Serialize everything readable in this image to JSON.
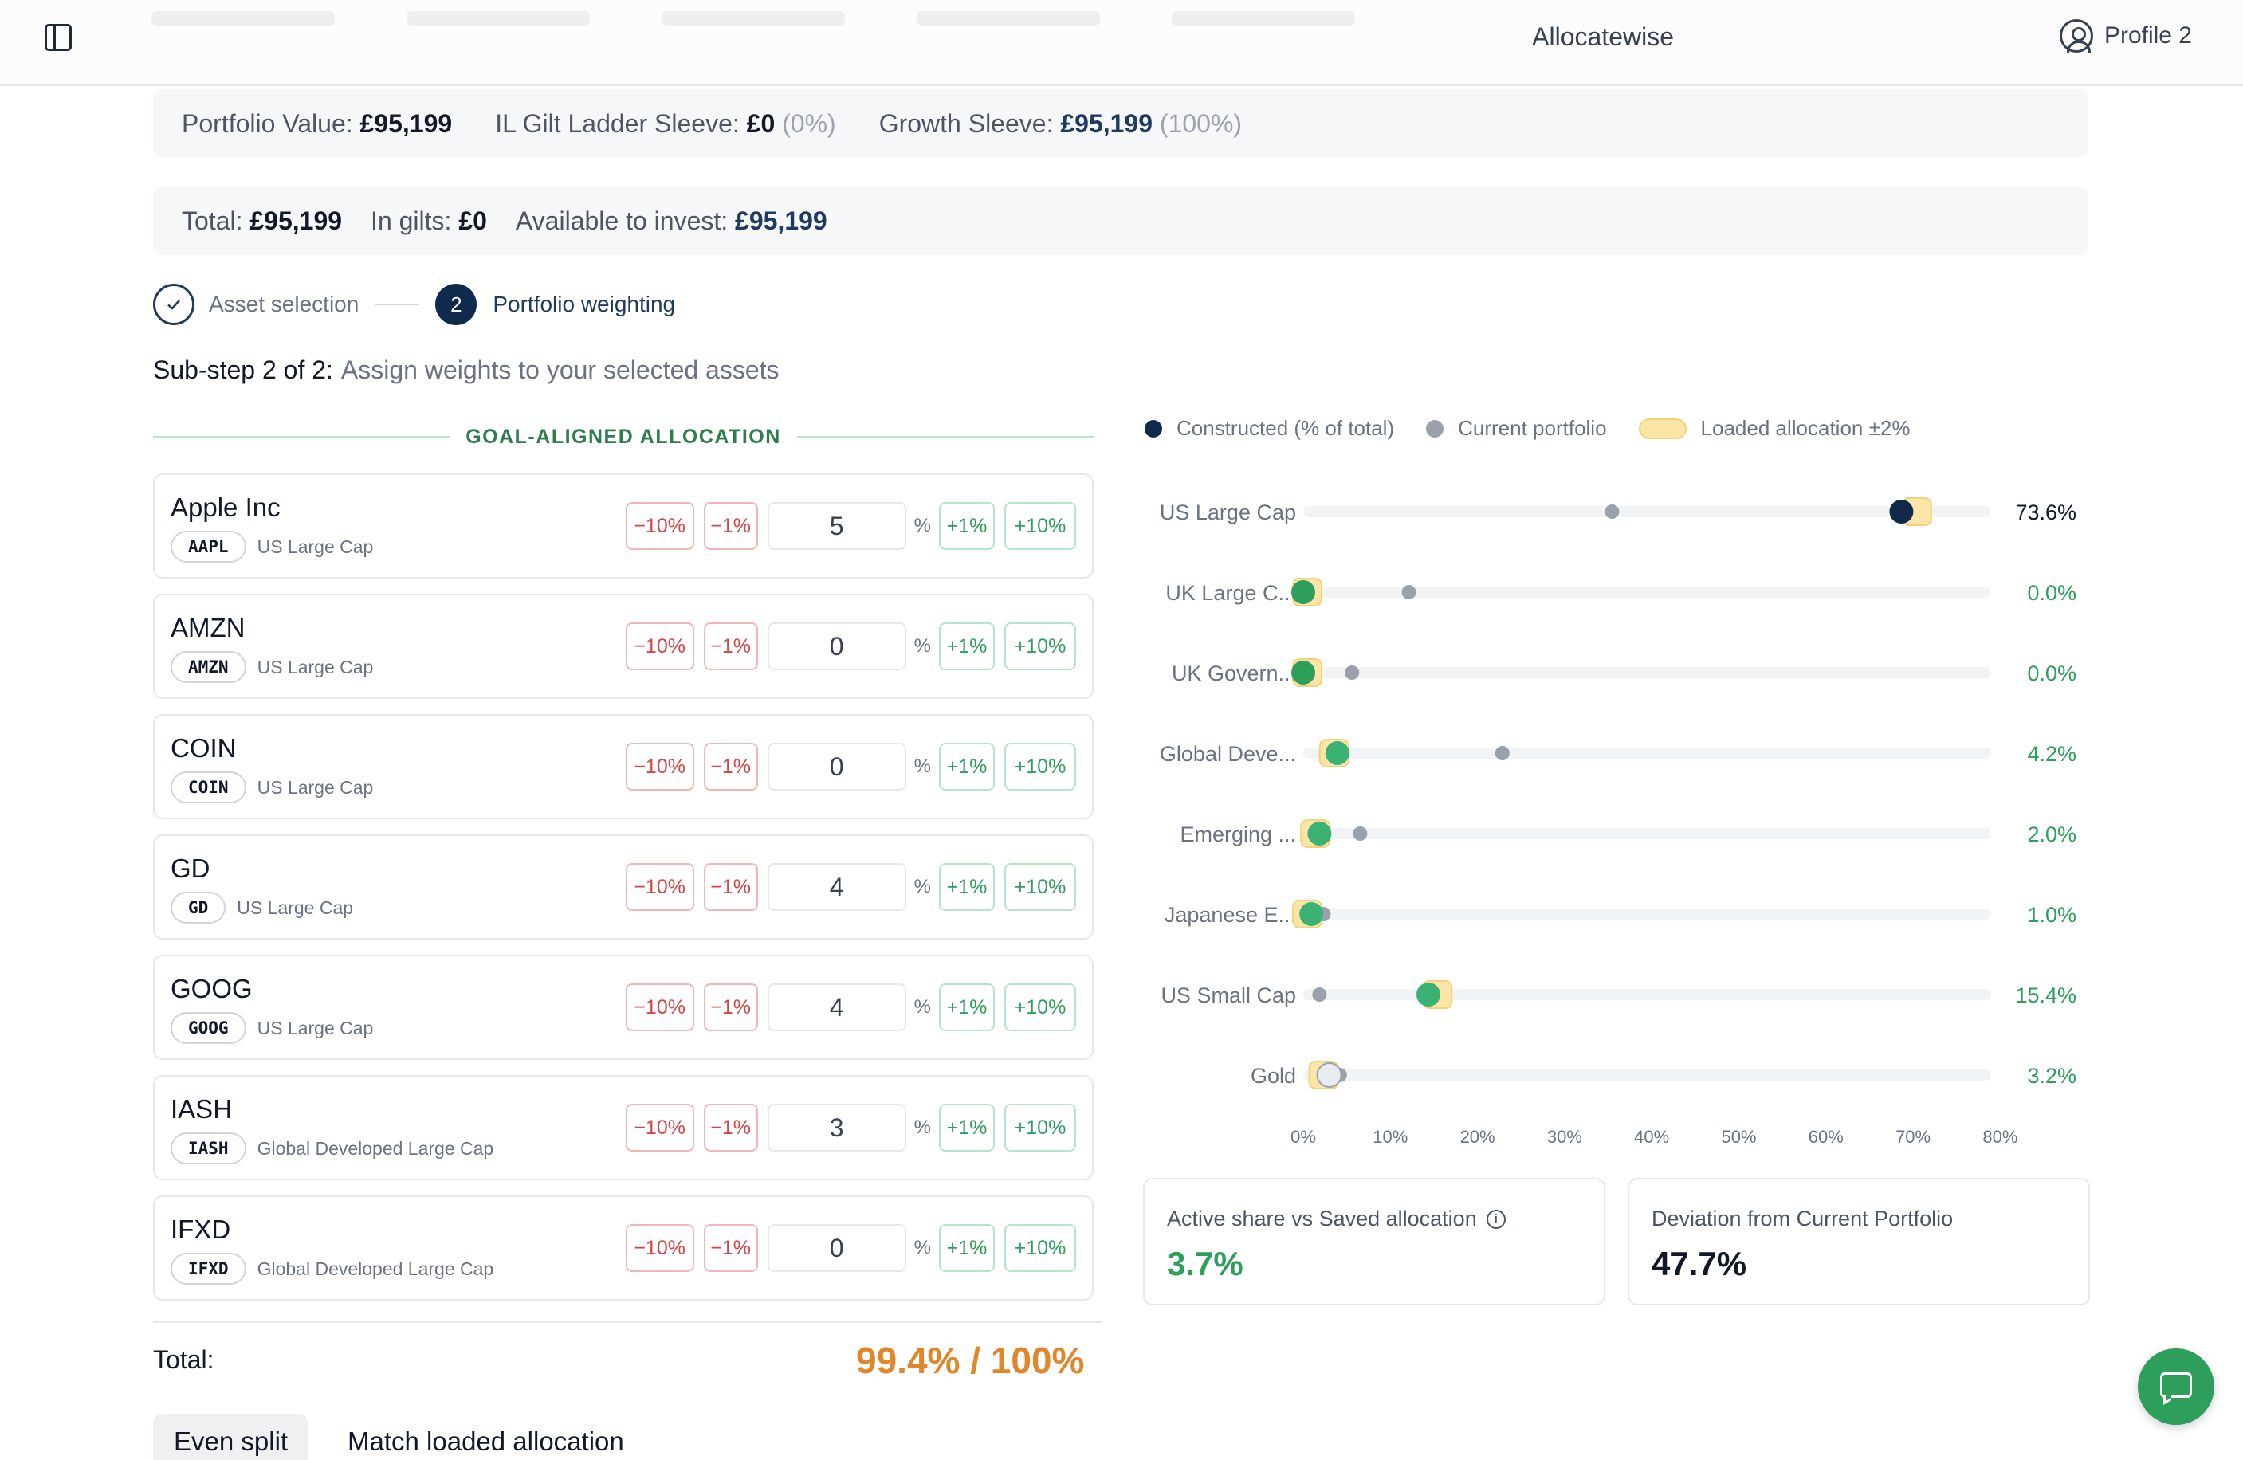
{
  "header": {
    "brand": "Allocatewise",
    "profile": "Profile 2"
  },
  "summary": {
    "portfolio_label": "Portfolio Value:",
    "portfolio_value": "£95,199",
    "gilt_label": "IL Gilt Ladder Sleeve:",
    "gilt_value": "£0",
    "gilt_pct": "(0%)",
    "growth_label": "Growth Sleeve:",
    "growth_value": "£95,199",
    "growth_pct": "(100%)"
  },
  "totals": {
    "total_label": "Total:",
    "total_value": "£95,199",
    "gilts_label": "In gilts:",
    "gilts_value": "£0",
    "available_label": "Available to invest:",
    "available_value": "£95,199"
  },
  "stepper": {
    "step1_label": "Asset selection",
    "step2_number": "2",
    "step2_label": "Portfolio weighting"
  },
  "substep": {
    "prefix": "Sub-step 2 of 2:",
    "text": "Assign weights to your selected assets"
  },
  "allocation_header": "GOAL-ALIGNED ALLOCATION",
  "buttons": {
    "minus10": "−10%",
    "minus1": "−1%",
    "plus1": "+1%",
    "plus10": "+10%",
    "pct": "%"
  },
  "assets": [
    {
      "name": "Apple Inc",
      "ticker": "AAPL",
      "class": "US Large Cap",
      "weight": "5"
    },
    {
      "name": "AMZN",
      "ticker": "AMZN",
      "class": "US Large Cap",
      "weight": "0"
    },
    {
      "name": "COIN",
      "ticker": "COIN",
      "class": "US Large Cap",
      "weight": "0"
    },
    {
      "name": "GD",
      "ticker": "GD",
      "class": "US Large Cap",
      "weight": "4"
    },
    {
      "name": "GOOG",
      "ticker": "GOOG",
      "class": "US Large Cap",
      "weight": "4"
    },
    {
      "name": "IASH",
      "ticker": "IASH",
      "class": "Global Developed Large Cap",
      "weight": "3"
    },
    {
      "name": "IFXD",
      "ticker": "IFXD",
      "class": "Global Developed Large Cap",
      "weight": "0"
    }
  ],
  "footer": {
    "total_label": "Total:",
    "total_value": "99.4% / 100%",
    "even_split": "Even split",
    "match_loaded": "Match loaded allocation"
  },
  "legend": {
    "constructed": "Constructed (% of total)",
    "current": "Current portfolio",
    "loaded": "Loaded allocation ±2%"
  },
  "chart_data": {
    "type": "scatter",
    "x_ticks": [
      "0%",
      "10%",
      "20%",
      "30%",
      "40%",
      "50%",
      "60%",
      "70%",
      "80%"
    ],
    "xlim": [
      0,
      80
    ],
    "categories": [
      "US Large Cap",
      "UK Large C...",
      "UK Govern...",
      "Global Deve...",
      "Emerging ...",
      "Japanese E...",
      "US Small Cap",
      "Gold"
    ],
    "series": [
      {
        "name": "Constructed (% of total)",
        "values": [
          73.6,
          0.0,
          0.0,
          4.2,
          2.0,
          1.0,
          15.4,
          3.2
        ]
      },
      {
        "name": "Current portfolio",
        "values": [
          38.0,
          13.0,
          6.0,
          24.5,
          7.0,
          2.5,
          2.0,
          4.5
        ]
      },
      {
        "name": "Loaded allocation ±2%",
        "values": [
          75.5,
          0.5,
          0.5,
          3.8,
          1.5,
          0.5,
          16.5,
          2.5
        ]
      }
    ],
    "value_labels": [
      "73.6%",
      "0.0%",
      "0.0%",
      "4.2%",
      "2.0%",
      "1.0%",
      "15.4%",
      "3.2%"
    ],
    "value_colors": [
      "#111827",
      "#2e9e5b",
      "#2e9e5b",
      "#2e9e5b",
      "#2e9e5b",
      "#2e9e5b",
      "#2e9e5b",
      "#2e9e5b"
    ],
    "dot_colors": [
      "#102a4e",
      "#2e9e5b",
      "#2e9e5b",
      "#3bb273",
      "#3bb273",
      "#3bb273",
      "#3bb273",
      "#e8ecef"
    ]
  },
  "metrics": {
    "active_share_label": "Active share vs Saved allocation",
    "active_share_value": "3.7%",
    "deviation_label": "Deviation from Current Portfolio",
    "deviation_value": "47.7%"
  },
  "colors": {
    "navy": "#102a4e",
    "green": "#2e9e5b",
    "orange": "#e0862b",
    "gray_dot": "#9aa1ab",
    "loaded_fill": "#fbe6a8"
  }
}
